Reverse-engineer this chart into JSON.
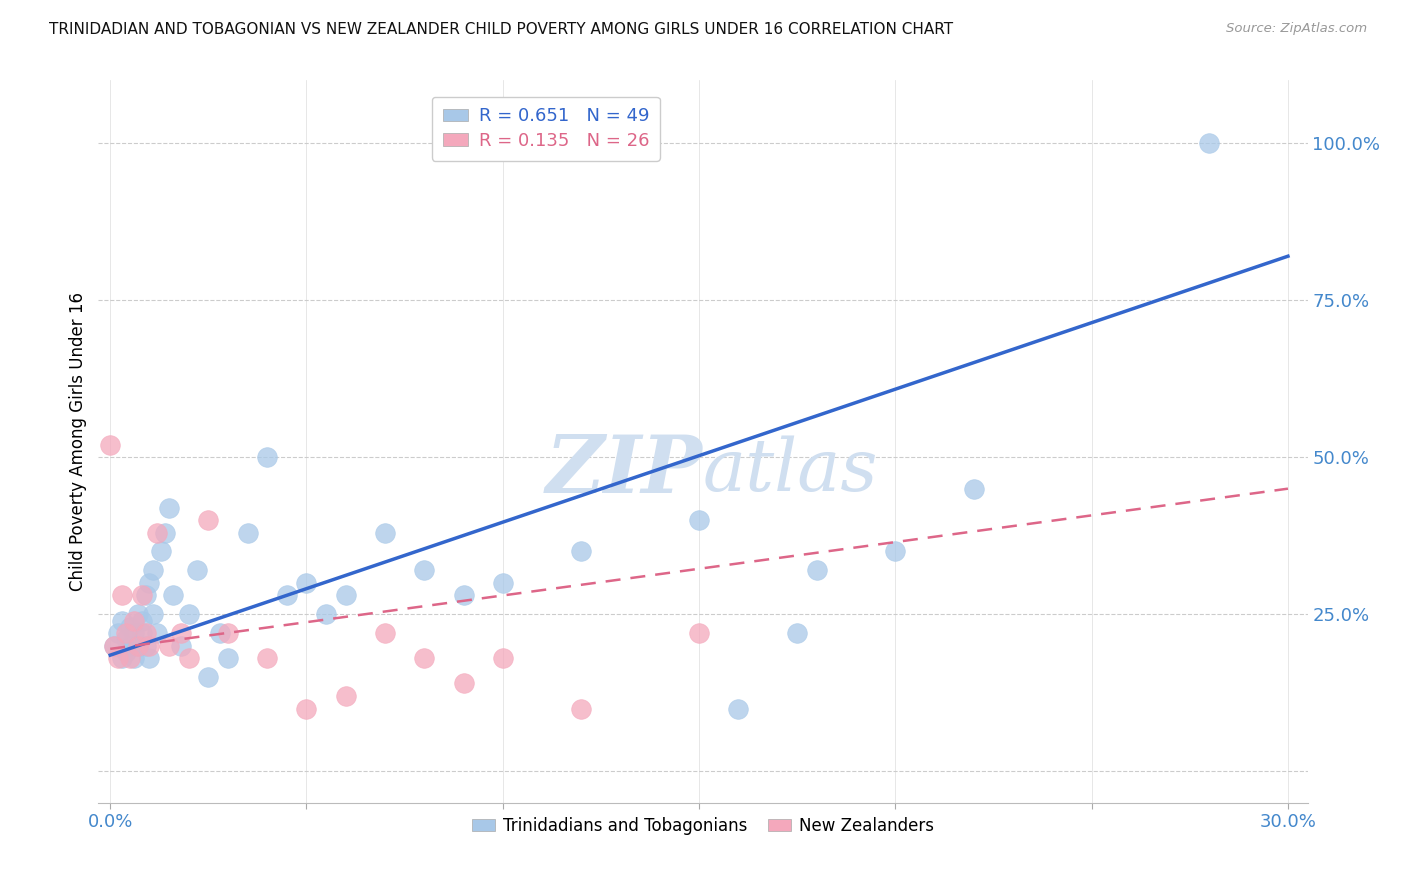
{
  "title": "TRINIDADIAN AND TOBAGONIAN VS NEW ZEALANDER CHILD POVERTY AMONG GIRLS UNDER 16 CORRELATION CHART",
  "source": "Source: ZipAtlas.com",
  "xlabel": "",
  "ylabel": "Child Poverty Among Girls Under 16",
  "xlim": [
    -0.003,
    0.305
  ],
  "ylim": [
    -0.05,
    1.1
  ],
  "xticks": [
    0.0,
    0.05,
    0.1,
    0.15,
    0.2,
    0.25,
    0.3
  ],
  "xtick_labels": [
    "0.0%",
    "",
    "",
    "",
    "",
    "",
    "30.0%"
  ],
  "ytick_vals": [
    0.0,
    0.25,
    0.5,
    0.75,
    1.0
  ],
  "ytick_labels": [
    "",
    "25.0%",
    "50.0%",
    "75.0%",
    "100.0%"
  ],
  "blue_R": 0.651,
  "blue_N": 49,
  "pink_R": 0.135,
  "pink_N": 26,
  "blue_color": "#a8c8e8",
  "pink_color": "#f4a8bc",
  "blue_line_color": "#3366cc",
  "pink_line_color": "#dd6688",
  "axis_label_color": "#4488cc",
  "title_color": "#111111",
  "watermark_color": "#d0dff0",
  "blue_x": [
    0.001,
    0.002,
    0.003,
    0.003,
    0.004,
    0.004,
    0.005,
    0.005,
    0.006,
    0.006,
    0.007,
    0.007,
    0.008,
    0.008,
    0.009,
    0.009,
    0.01,
    0.01,
    0.011,
    0.011,
    0.012,
    0.013,
    0.014,
    0.015,
    0.016,
    0.018,
    0.02,
    0.022,
    0.025,
    0.028,
    0.03,
    0.035,
    0.04,
    0.045,
    0.05,
    0.055,
    0.06,
    0.07,
    0.08,
    0.09,
    0.1,
    0.12,
    0.15,
    0.16,
    0.18,
    0.2,
    0.22,
    0.175,
    0.28
  ],
  "blue_y": [
    0.2,
    0.22,
    0.18,
    0.24,
    0.21,
    0.19,
    0.23,
    0.2,
    0.22,
    0.18,
    0.25,
    0.2,
    0.24,
    0.22,
    0.2,
    0.28,
    0.3,
    0.18,
    0.25,
    0.32,
    0.22,
    0.35,
    0.38,
    0.42,
    0.28,
    0.2,
    0.25,
    0.32,
    0.15,
    0.22,
    0.18,
    0.38,
    0.5,
    0.28,
    0.3,
    0.25,
    0.28,
    0.38,
    0.32,
    0.28,
    0.3,
    0.35,
    0.4,
    0.1,
    0.32,
    0.35,
    0.45,
    0.22,
    1.0
  ],
  "pink_x": [
    0.0,
    0.001,
    0.002,
    0.003,
    0.004,
    0.005,
    0.006,
    0.007,
    0.008,
    0.009,
    0.01,
    0.012,
    0.015,
    0.018,
    0.02,
    0.025,
    0.03,
    0.04,
    0.05,
    0.06,
    0.07,
    0.08,
    0.09,
    0.1,
    0.12,
    0.15
  ],
  "pink_y": [
    0.52,
    0.2,
    0.18,
    0.28,
    0.22,
    0.18,
    0.24,
    0.2,
    0.28,
    0.22,
    0.2,
    0.38,
    0.2,
    0.22,
    0.18,
    0.4,
    0.22,
    0.18,
    0.1,
    0.12,
    0.22,
    0.18,
    0.14,
    0.18,
    0.1,
    0.22
  ],
  "blue_line_x": [
    0.0,
    0.3
  ],
  "blue_line_y": [
    0.185,
    0.82
  ],
  "pink_line_x": [
    0.0,
    0.3
  ],
  "pink_line_y": [
    0.195,
    0.45
  ]
}
